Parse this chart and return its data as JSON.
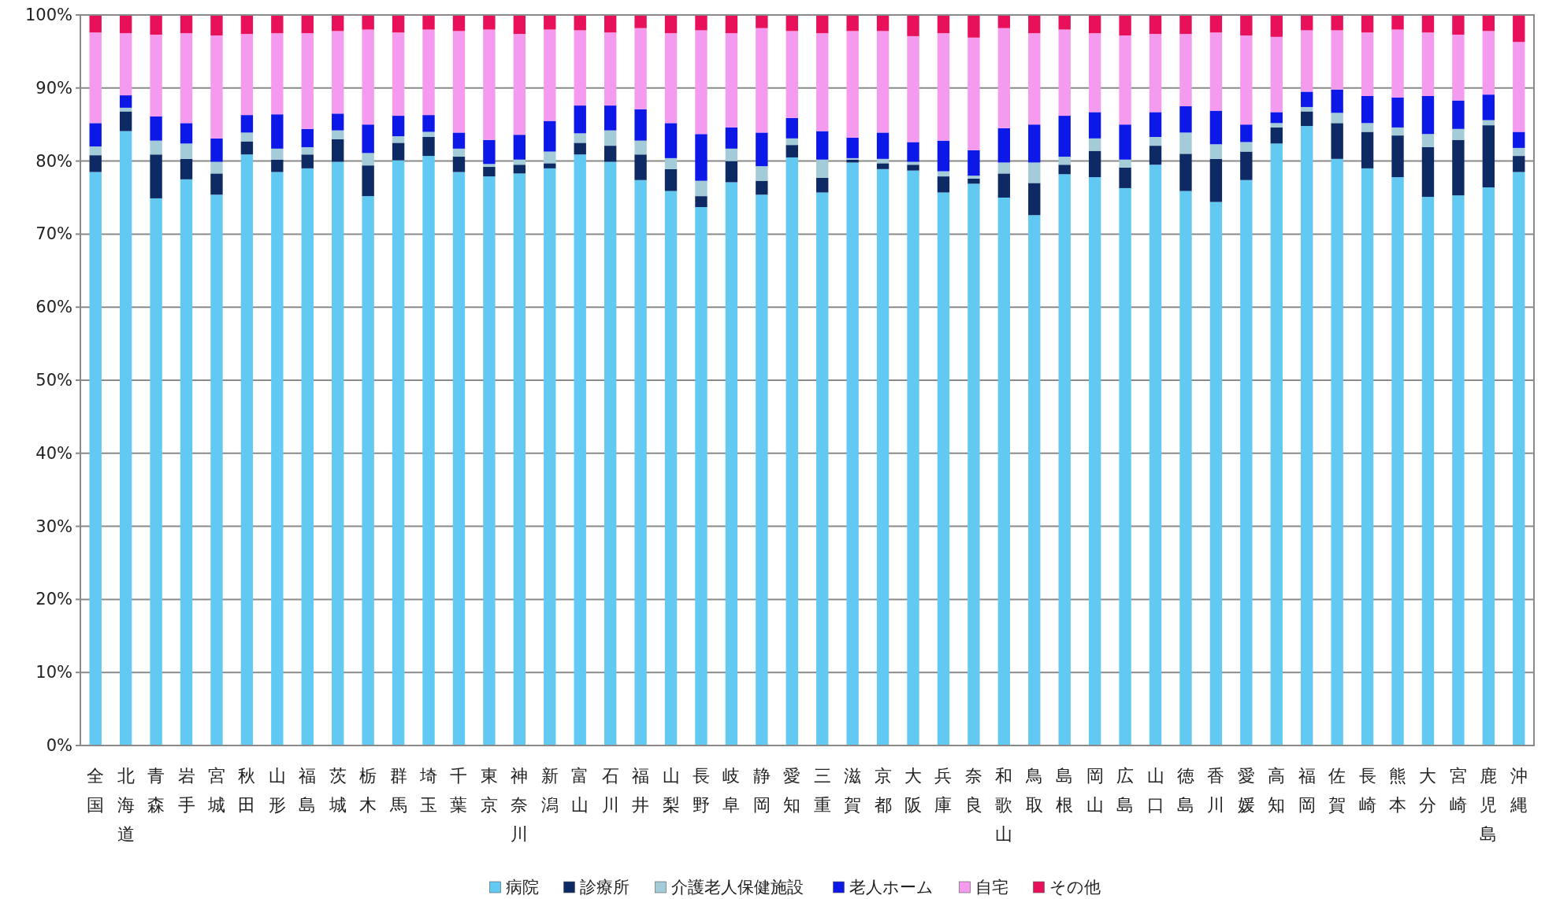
{
  "chart_data": {
    "type": "bar",
    "stacked": true,
    "grid": "y",
    "legend": "bottom",
    "categories": [
      "全国",
      "北海道",
      "青森",
      "岩手",
      "宮城",
      "秋田",
      "山形",
      "福島",
      "茨城",
      "栃木",
      "群馬",
      "埼玉",
      "千葉",
      "東京",
      "神奈川",
      "新潟",
      "富山",
      "石川",
      "福井",
      "山梨",
      "長野",
      "岐阜",
      "静岡",
      "愛知",
      "三重",
      "滋賀",
      "京都",
      "大阪",
      "兵庫",
      "奈良",
      "和歌山",
      "鳥取",
      "島根",
      "岡山",
      "広島",
      "山口",
      "徳島",
      "香川",
      "愛媛",
      "高知",
      "福岡",
      "佐賀",
      "長崎",
      "熊本",
      "大分",
      "宮崎",
      "鹿児島",
      "沖縄"
    ],
    "ylim": [
      0,
      100
    ],
    "yticks": [
      {
        "value": 0,
        "label": "0%"
      },
      {
        "value": 10,
        "label": "10%"
      },
      {
        "value": 20,
        "label": "20%"
      },
      {
        "value": 30,
        "label": "30%"
      },
      {
        "value": 40,
        "label": "40%"
      },
      {
        "value": 50,
        "label": "50%"
      },
      {
        "value": 60,
        "label": "60%"
      },
      {
        "value": 70,
        "label": "70%"
      },
      {
        "value": 80,
        "label": "80%"
      },
      {
        "value": 90,
        "label": "90%"
      },
      {
        "value": 100,
        "label": "100%"
      }
    ],
    "series": [
      {
        "name": "病院",
        "color": "#62c9f2",
        "values": [
          78.5,
          84.1,
          74.9,
          77.5,
          75.4,
          80.9,
          78.5,
          79.0,
          79.9,
          75.2,
          80.1,
          80.7,
          78.5,
          77.9,
          78.3,
          79.0,
          80.9,
          79.9,
          77.4,
          75.9,
          73.7,
          77.1,
          75.4,
          80.5,
          75.7,
          79.8,
          78.9,
          78.7,
          75.7,
          76.9,
          75.0,
          72.6,
          78.2,
          77.8,
          76.3,
          79.5,
          75.9,
          74.4,
          77.4,
          82.4,
          84.8,
          80.3,
          79.0,
          77.8,
          75.1,
          75.3,
          76.4,
          78.5
        ]
      },
      {
        "name": "診療所",
        "color": "#0e2a64",
        "values": [
          2.3,
          2.7,
          6.0,
          2.8,
          2.9,
          1.8,
          1.7,
          1.9,
          3.1,
          4.2,
          2.4,
          2.6,
          2.1,
          1.3,
          1.2,
          0.7,
          1.6,
          2.2,
          3.5,
          3.0,
          1.5,
          2.9,
          1.9,
          1.7,
          2.0,
          0.4,
          0.8,
          0.8,
          2.2,
          0.7,
          3.3,
          4.4,
          1.3,
          3.6,
          2.8,
          2.6,
          5.1,
          5.9,
          3.9,
          2.2,
          2.0,
          4.9,
          5.0,
          5.7,
          6.8,
          7.6,
          8.5,
          2.2
        ]
      },
      {
        "name": "介護老人保健施設",
        "color": "#a3cbd8",
        "values": [
          1.2,
          0.5,
          1.9,
          2.1,
          1.6,
          1.2,
          1.5,
          1.0,
          1.2,
          1.7,
          0.9,
          0.7,
          1.1,
          0.4,
          0.7,
          1.6,
          1.3,
          2.1,
          1.9,
          1.5,
          2.1,
          1.7,
          2.0,
          0.9,
          2.5,
          0.2,
          0.6,
          0.4,
          0.7,
          0.4,
          1.5,
          2.8,
          1.1,
          1.7,
          1.1,
          1.2,
          2.9,
          2.0,
          1.3,
          0.6,
          0.6,
          1.4,
          1.2,
          1.1,
          1.8,
          1.5,
          0.7,
          1.1
        ]
      },
      {
        "name": "老人ホーム",
        "color": "#0c18e8",
        "values": [
          3.2,
          1.7,
          3.3,
          2.8,
          3.2,
          2.4,
          4.7,
          2.5,
          2.3,
          3.9,
          2.8,
          2.3,
          2.2,
          3.3,
          3.4,
          4.2,
          3.8,
          3.4,
          4.3,
          4.8,
          6.4,
          2.9,
          4.6,
          2.8,
          3.9,
          2.8,
          3.6,
          2.7,
          4.2,
          3.5,
          4.7,
          5.2,
          5.6,
          3.6,
          4.8,
          3.4,
          3.6,
          4.6,
          2.4,
          1.5,
          2.1,
          3.2,
          3.7,
          4.1,
          5.2,
          3.9,
          3.5,
          2.2
        ]
      },
      {
        "name": "自宅",
        "color": "#f59bef",
        "values": [
          12.4,
          8.5,
          11.2,
          12.3,
          14.1,
          11.1,
          11.1,
          13.1,
          11.3,
          13.0,
          11.4,
          11.7,
          13.9,
          15.1,
          13.8,
          12.5,
          10.3,
          10.0,
          11.1,
          12.3,
          14.2,
          12.9,
          14.3,
          11.9,
          13.4,
          14.6,
          13.9,
          14.5,
          14.7,
          15.4,
          13.7,
          12.5,
          11.8,
          10.8,
          12.2,
          10.7,
          9.9,
          10.7,
          12.2,
          10.3,
          8.4,
          8.1,
          8.7,
          9.3,
          8.7,
          9.0,
          8.7,
          12.3
        ]
      },
      {
        "name": "その他",
        "color": "#e8105a",
        "values": [
          2.4,
          2.5,
          2.7,
          2.5,
          2.8,
          2.6,
          2.5,
          2.5,
          2.2,
          2.0,
          2.4,
          2.0,
          2.2,
          2.0,
          2.6,
          2.0,
          2.1,
          2.4,
          1.8,
          2.5,
          2.1,
          2.5,
          1.8,
          2.2,
          2.5,
          2.2,
          2.2,
          2.9,
          2.5,
          3.1,
          1.8,
          2.5,
          2.0,
          2.5,
          2.8,
          2.6,
          2.6,
          2.4,
          2.8,
          3.0,
          2.1,
          2.1,
          2.4,
          2.0,
          2.4,
          2.7,
          2.2,
          3.7
        ]
      }
    ]
  }
}
